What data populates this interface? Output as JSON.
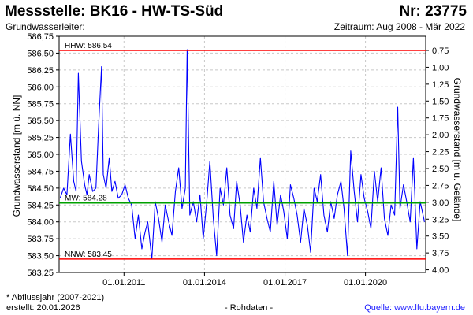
{
  "header": {
    "title": "Messstelle: BK16 - HW-TS-Süd",
    "number": "Nr: 23775",
    "aquifer": "Grundwasserleiter:",
    "period": "Zeitraum: Aug 2008 - Mär 2022"
  },
  "footer": {
    "note": "* Abflussjahr (2007-2021)",
    "created": "erstellt:  20.01.2026",
    "raw": "- Rohdaten -",
    "source": "Quelle:  www.lfu.bayern.de"
  },
  "colors": {
    "series": "#0000ff",
    "hhw": "#ff0000",
    "nnw": "#ff0000",
    "mnw": "#00a000",
    "grid": "#c8c8c8"
  },
  "chart_data": {
    "type": "line",
    "xlabel": "",
    "ylabel": "Grundwasserstand [m ü. NN]",
    "ylabel_right": "Grundwasserstand [m u. Gelände]",
    "ylim": [
      583.25,
      586.75
    ],
    "yticks": [
      "586,75",
      "586,50",
      "586,25",
      "586,00",
      "585,75",
      "585,50",
      "585,25",
      "585,00",
      "584,75",
      "584,50",
      "584,25",
      "584,00",
      "583,75",
      "583,50",
      "583,25"
    ],
    "yticks_right": [
      "0,75",
      "1,00",
      "1,25",
      "1,50",
      "1,75",
      "2,00",
      "2,25",
      "2,50",
      "2,75",
      "3,00",
      "3,25",
      "3,50",
      "3,75",
      "4,00"
    ],
    "xlim": [
      "2008-08-01",
      "2022-03-31"
    ],
    "xticks": [
      {
        "date": "2011-01-01",
        "label": "01.01.2011"
      },
      {
        "date": "2014-01-01",
        "label": "01.01.2014"
      },
      {
        "date": "2017-01-01",
        "label": "01.01.2017"
      },
      {
        "date": "2020-01-01",
        "label": "01.01.2020"
      }
    ],
    "grid": true,
    "reference_lines": [
      {
        "label": "HHW: 586.54",
        "value": 586.54,
        "color": "#ff0000"
      },
      {
        "label": "MW: 584.28",
        "value": 584.28,
        "color": "#00a000"
      },
      {
        "label": "NNW: 583.45",
        "value": 583.45,
        "color": "#ff0000"
      }
    ],
    "series": [
      {
        "x": [
          "2008-08-15",
          "2008-10-01",
          "2008-11-15",
          "2009-01-01",
          "2009-02-15",
          "2009-03-20",
          "2009-04-20",
          "2009-06-01",
          "2009-07-15",
          "2009-08-15",
          "2009-09-15",
          "2009-11-01",
          "2009-12-15",
          "2010-01-20",
          "2010-03-01",
          "2010-03-25",
          "2010-05-01",
          "2010-06-15",
          "2010-07-20",
          "2010-09-01",
          "2010-10-15",
          "2010-12-01",
          "2011-01-15",
          "2011-03-01",
          "2011-04-15",
          "2011-06-01",
          "2011-07-15",
          "2011-09-01",
          "2011-10-15",
          "2011-11-20",
          "2012-01-15",
          "2012-03-01",
          "2012-04-15",
          "2012-06-01",
          "2012-07-15",
          "2012-09-01",
          "2012-10-15",
          "2012-12-01",
          "2013-01-15",
          "2013-03-01",
          "2013-04-15",
          "2013-05-10",
          "2013-06-15",
          "2013-08-01",
          "2013-09-15",
          "2013-11-01",
          "2013-12-15",
          "2014-02-01",
          "2014-03-15",
          "2014-05-01",
          "2014-06-15",
          "2014-08-01",
          "2014-09-15",
          "2014-11-01",
          "2014-12-15",
          "2015-02-01",
          "2015-03-15",
          "2015-05-01",
          "2015-06-15",
          "2015-08-01",
          "2015-09-15",
          "2015-11-01",
          "2015-12-15",
          "2016-02-01",
          "2016-03-15",
          "2016-05-01",
          "2016-06-15",
          "2016-08-01",
          "2016-09-15",
          "2016-11-01",
          "2016-12-15",
          "2017-02-01",
          "2017-03-15",
          "2017-05-01",
          "2017-06-15",
          "2017-08-01",
          "2017-09-15",
          "2017-11-01",
          "2017-12-15",
          "2018-02-01",
          "2018-03-15",
          "2018-05-01",
          "2018-06-15",
          "2018-08-01",
          "2018-09-15",
          "2018-11-01",
          "2018-12-15",
          "2019-02-01",
          "2019-03-15",
          "2019-05-01",
          "2019-06-15",
          "2019-08-01",
          "2019-09-15",
          "2019-11-01",
          "2019-12-15",
          "2020-02-01",
          "2020-03-15",
          "2020-05-01",
          "2020-06-15",
          "2020-08-01",
          "2020-09-15",
          "2020-11-01",
          "2020-12-15",
          "2021-02-01",
          "2021-03-15",
          "2021-04-15",
          "2021-06-01",
          "2021-07-15",
          "2021-09-01",
          "2021-10-15",
          "2021-12-01",
          "2022-01-15",
          "2022-03-15"
        ],
        "values": [
          584.35,
          584.5,
          584.4,
          585.3,
          584.6,
          584.45,
          586.2,
          584.9,
          584.55,
          584.4,
          584.7,
          584.45,
          584.5,
          585.4,
          586.3,
          584.7,
          584.5,
          584.95,
          584.45,
          584.6,
          584.35,
          584.4,
          584.55,
          584.35,
          584.25,
          583.75,
          584.1,
          583.6,
          583.85,
          584.0,
          583.45,
          584.3,
          584.05,
          583.7,
          584.25,
          584.0,
          583.8,
          584.45,
          584.8,
          584.2,
          584.5,
          586.55,
          584.1,
          584.3,
          584.0,
          584.4,
          583.75,
          584.3,
          584.9,
          584.05,
          583.5,
          584.5,
          584.25,
          584.8,
          584.1,
          583.9,
          584.6,
          584.25,
          583.7,
          584.1,
          583.85,
          584.5,
          584.2,
          584.95,
          584.3,
          584.05,
          583.85,
          584.6,
          583.95,
          584.4,
          584.15,
          583.75,
          584.55,
          584.35,
          584.1,
          583.7,
          584.2,
          583.95,
          583.55,
          584.5,
          584.3,
          584.7,
          584.1,
          583.85,
          584.3,
          584.05,
          584.4,
          584.6,
          584.2,
          583.5,
          585.05,
          584.45,
          584.0,
          584.7,
          584.35,
          584.15,
          583.9,
          584.75,
          584.3,
          584.8,
          584.05,
          583.8,
          584.25,
          584.1,
          585.7,
          584.2,
          584.55,
          584.3,
          584.0,
          584.95,
          583.6,
          584.3,
          584.0
        ]
      }
    ]
  }
}
